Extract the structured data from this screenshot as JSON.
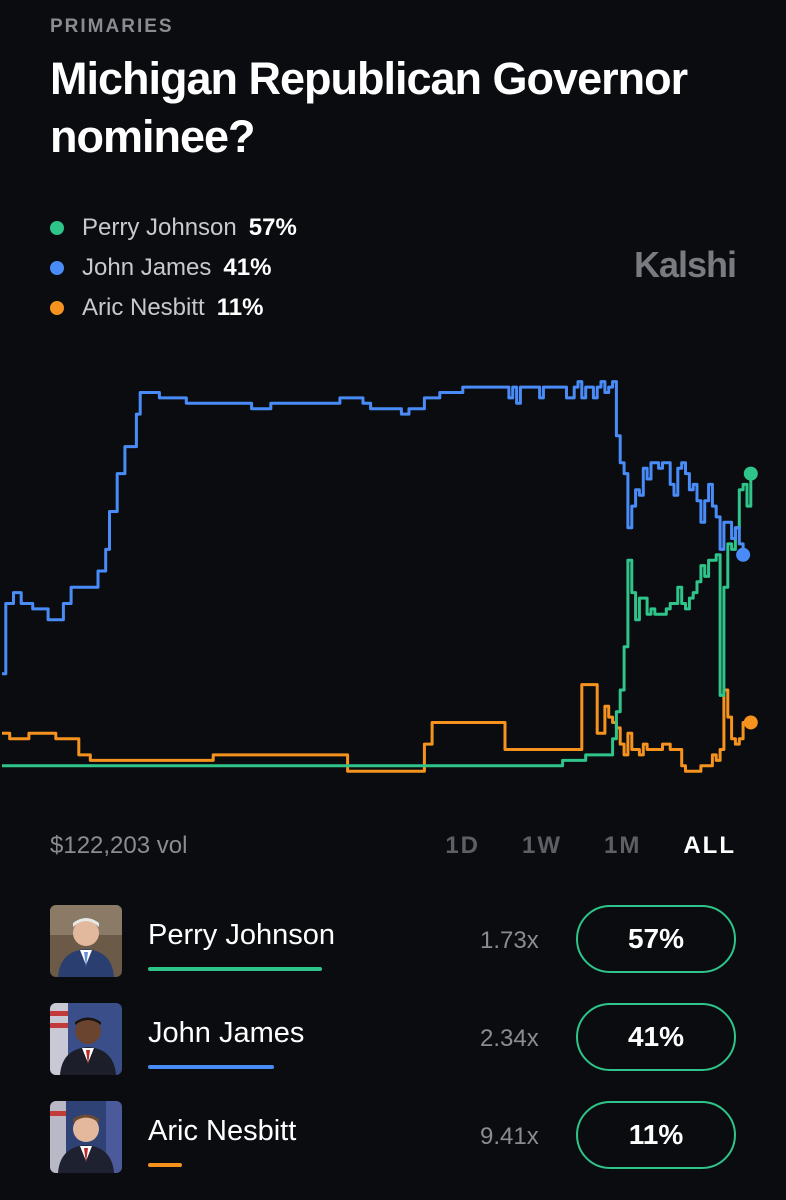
{
  "header": {
    "category": "PRIMARIES",
    "title": "Michigan Republican Governor nominee?"
  },
  "brand": "Kalshi",
  "legend": [
    {
      "name": "Perry Johnson",
      "pct": "57%",
      "color": "#2fc48a"
    },
    {
      "name": "John James",
      "pct": "41%",
      "color": "#4a8cf7"
    },
    {
      "name": "Aric Nesbitt",
      "pct": "11%",
      "color": "#f5931e"
    }
  ],
  "chart_data": {
    "type": "line",
    "x_points": 200,
    "y_unit": "percent chance",
    "series": [
      {
        "name": "John James",
        "color": "#4a8cf7",
        "values": [
          [
            0,
            20
          ],
          [
            1,
            33
          ],
          [
            3,
            35
          ],
          [
            5,
            33
          ],
          [
            7,
            33
          ],
          [
            8,
            32
          ],
          [
            10,
            32
          ],
          [
            12,
            30
          ],
          [
            14,
            30
          ],
          [
            16,
            33
          ],
          [
            17,
            33
          ],
          [
            18,
            36
          ],
          [
            20,
            36
          ],
          [
            22,
            36
          ],
          [
            24,
            36
          ],
          [
            25,
            39
          ],
          [
            27,
            43
          ],
          [
            28,
            50
          ],
          [
            30,
            57
          ],
          [
            32,
            62
          ],
          [
            34,
            62
          ],
          [
            35,
            68
          ],
          [
            36,
            72
          ],
          [
            37,
            72
          ],
          [
            38,
            72
          ],
          [
            40,
            72
          ],
          [
            41,
            71
          ],
          [
            43,
            71
          ],
          [
            45,
            71
          ],
          [
            47,
            71
          ],
          [
            48,
            70
          ],
          [
            50,
            70
          ],
          [
            52,
            70
          ],
          [
            54,
            70
          ],
          [
            56,
            70
          ],
          [
            58,
            70
          ],
          [
            60,
            70
          ],
          [
            62,
            70
          ],
          [
            65,
            69
          ],
          [
            68,
            69
          ],
          [
            70,
            70
          ],
          [
            72,
            70
          ],
          [
            74,
            70
          ],
          [
            76,
            70
          ],
          [
            78,
            70
          ],
          [
            80,
            70
          ],
          [
            82,
            70
          ],
          [
            84,
            70
          ],
          [
            86,
            70
          ],
          [
            88,
            71
          ],
          [
            90,
            71
          ],
          [
            92,
            71
          ],
          [
            94,
            70
          ],
          [
            96,
            69
          ],
          [
            98,
            69
          ],
          [
            100,
            69
          ],
          [
            102,
            69
          ],
          [
            104,
            68
          ],
          [
            106,
            69
          ],
          [
            108,
            69
          ],
          [
            110,
            71
          ],
          [
            112,
            71
          ],
          [
            114,
            72
          ],
          [
            116,
            72
          ],
          [
            118,
            72
          ],
          [
            120,
            73
          ],
          [
            122,
            73
          ],
          [
            124,
            73
          ],
          [
            126,
            73
          ],
          [
            128,
            73
          ],
          [
            130,
            73
          ],
          [
            132,
            71
          ],
          [
            133,
            73
          ],
          [
            134,
            70
          ],
          [
            135,
            73
          ],
          [
            136,
            73
          ],
          [
            138,
            73
          ],
          [
            139,
            73
          ],
          [
            140,
            71
          ],
          [
            141,
            73
          ],
          [
            142,
            73
          ],
          [
            144,
            73
          ],
          [
            146,
            73
          ],
          [
            147,
            71
          ],
          [
            148,
            71
          ],
          [
            149,
            73
          ],
          [
            150,
            74
          ],
          [
            151,
            71
          ],
          [
            152,
            73
          ],
          [
            153,
            73
          ],
          [
            154,
            71
          ],
          [
            155,
            73
          ],
          [
            156,
            74
          ],
          [
            157,
            72
          ],
          [
            158,
            73
          ],
          [
            159,
            74
          ],
          [
            160,
            64
          ],
          [
            161,
            59
          ],
          [
            162,
            57
          ],
          [
            163,
            47
          ],
          [
            164,
            51
          ],
          [
            165,
            54
          ],
          [
            166,
            53
          ],
          [
            167,
            58
          ],
          [
            168,
            56
          ],
          [
            169,
            59
          ],
          [
            170,
            59
          ],
          [
            171,
            58
          ],
          [
            172,
            59
          ],
          [
            173,
            59
          ],
          [
            174,
            55
          ],
          [
            175,
            53
          ],
          [
            176,
            58
          ],
          [
            177,
            59
          ],
          [
            178,
            57
          ],
          [
            179,
            54
          ],
          [
            180,
            55
          ],
          [
            181,
            52
          ],
          [
            182,
            48
          ],
          [
            183,
            52
          ],
          [
            184,
            55
          ],
          [
            185,
            51
          ],
          [
            186,
            49
          ],
          [
            187,
            43
          ],
          [
            188,
            48
          ],
          [
            189,
            48
          ],
          [
            190,
            45
          ],
          [
            191,
            47
          ],
          [
            192,
            44
          ],
          [
            193,
            42
          ]
        ]
      },
      {
        "name": "Perry Johnson",
        "color": "#2fc48a",
        "values": [
          [
            0,
            3
          ],
          [
            10,
            3
          ],
          [
            20,
            3
          ],
          [
            30,
            3
          ],
          [
            40,
            3
          ],
          [
            50,
            3
          ],
          [
            60,
            3
          ],
          [
            70,
            3
          ],
          [
            80,
            3
          ],
          [
            90,
            3
          ],
          [
            100,
            3
          ],
          [
            110,
            3
          ],
          [
            120,
            3
          ],
          [
            130,
            3
          ],
          [
            140,
            3
          ],
          [
            145,
            3
          ],
          [
            146,
            4
          ],
          [
            150,
            4
          ],
          [
            152,
            5
          ],
          [
            154,
            5
          ],
          [
            156,
            5
          ],
          [
            158,
            5
          ],
          [
            159,
            8
          ],
          [
            160,
            13
          ],
          [
            161,
            17
          ],
          [
            162,
            25
          ],
          [
            163,
            41
          ],
          [
            164,
            35
          ],
          [
            165,
            30
          ],
          [
            166,
            34
          ],
          [
            167,
            34
          ],
          [
            168,
            31
          ],
          [
            169,
            32
          ],
          [
            170,
            31
          ],
          [
            171,
            31
          ],
          [
            172,
            31
          ],
          [
            173,
            32
          ],
          [
            174,
            33
          ],
          [
            175,
            33
          ],
          [
            176,
            36
          ],
          [
            177,
            33
          ],
          [
            178,
            32
          ],
          [
            179,
            34
          ],
          [
            180,
            35
          ],
          [
            181,
            37
          ],
          [
            182,
            40
          ],
          [
            183,
            38
          ],
          [
            184,
            41
          ],
          [
            185,
            41
          ],
          [
            186,
            42
          ],
          [
            187,
            16
          ],
          [
            188,
            36
          ],
          [
            189,
            44
          ],
          [
            190,
            43
          ],
          [
            191,
            47
          ],
          [
            192,
            54
          ],
          [
            193,
            55
          ],
          [
            194,
            51
          ],
          [
            195,
            57
          ]
        ]
      },
      {
        "name": "Aric Nesbitt",
        "color": "#f5931e",
        "values": [
          [
            0,
            9
          ],
          [
            2,
            8
          ],
          [
            4,
            8
          ],
          [
            7,
            9
          ],
          [
            10,
            9
          ],
          [
            14,
            8
          ],
          [
            18,
            8
          ],
          [
            20,
            5
          ],
          [
            23,
            4
          ],
          [
            30,
            4
          ],
          [
            40,
            4
          ],
          [
            50,
            4
          ],
          [
            55,
            5
          ],
          [
            60,
            5
          ],
          [
            70,
            5
          ],
          [
            80,
            5
          ],
          [
            85,
            5
          ],
          [
            90,
            2
          ],
          [
            100,
            2
          ],
          [
            105,
            2
          ],
          [
            108,
            2
          ],
          [
            110,
            7
          ],
          [
            112,
            11
          ],
          [
            120,
            11
          ],
          [
            125,
            11
          ],
          [
            130,
            11
          ],
          [
            131,
            6
          ],
          [
            135,
            6
          ],
          [
            140,
            6
          ],
          [
            145,
            6
          ],
          [
            147,
            6
          ],
          [
            150,
            6
          ],
          [
            151,
            18
          ],
          [
            154,
            18
          ],
          [
            155,
            9
          ],
          [
            157,
            14
          ],
          [
            158,
            12
          ],
          [
            159,
            11
          ],
          [
            160,
            10
          ],
          [
            161,
            7
          ],
          [
            162,
            5
          ],
          [
            163,
            9
          ],
          [
            164,
            6
          ],
          [
            165,
            6
          ],
          [
            166,
            5
          ],
          [
            167,
            7
          ],
          [
            168,
            6
          ],
          [
            170,
            6
          ],
          [
            172,
            7
          ],
          [
            174,
            6
          ],
          [
            176,
            6
          ],
          [
            177,
            3
          ],
          [
            178,
            2
          ],
          [
            180,
            2
          ],
          [
            182,
            3
          ],
          [
            183,
            3
          ],
          [
            185,
            5
          ],
          [
            186,
            4
          ],
          [
            187,
            6
          ],
          [
            188,
            17
          ],
          [
            189,
            12
          ],
          [
            190,
            8
          ],
          [
            191,
            7
          ],
          [
            192,
            8
          ],
          [
            193,
            11
          ],
          [
            194,
            11
          ],
          [
            195,
            11
          ]
        ]
      }
    ]
  },
  "volume": "$122,203 vol",
  "time_ranges": [
    "1D",
    "1W",
    "1M",
    "ALL"
  ],
  "active_range": "ALL",
  "candidates": [
    {
      "name": "Perry Johnson",
      "multiplier": "1.73x",
      "price": "57%",
      "color": "#2fc48a",
      "bar_fraction": 0.44
    },
    {
      "name": "John James",
      "multiplier": "2.34x",
      "price": "41%",
      "color": "#4a8cf7",
      "bar_fraction": 0.32
    },
    {
      "name": "Aric Nesbitt",
      "multiplier": "9.41x",
      "price": "11%",
      "color": "#f5931e",
      "bar_fraction": 0.09
    }
  ],
  "avatar_icons": [
    "person-avatar-icon"
  ]
}
